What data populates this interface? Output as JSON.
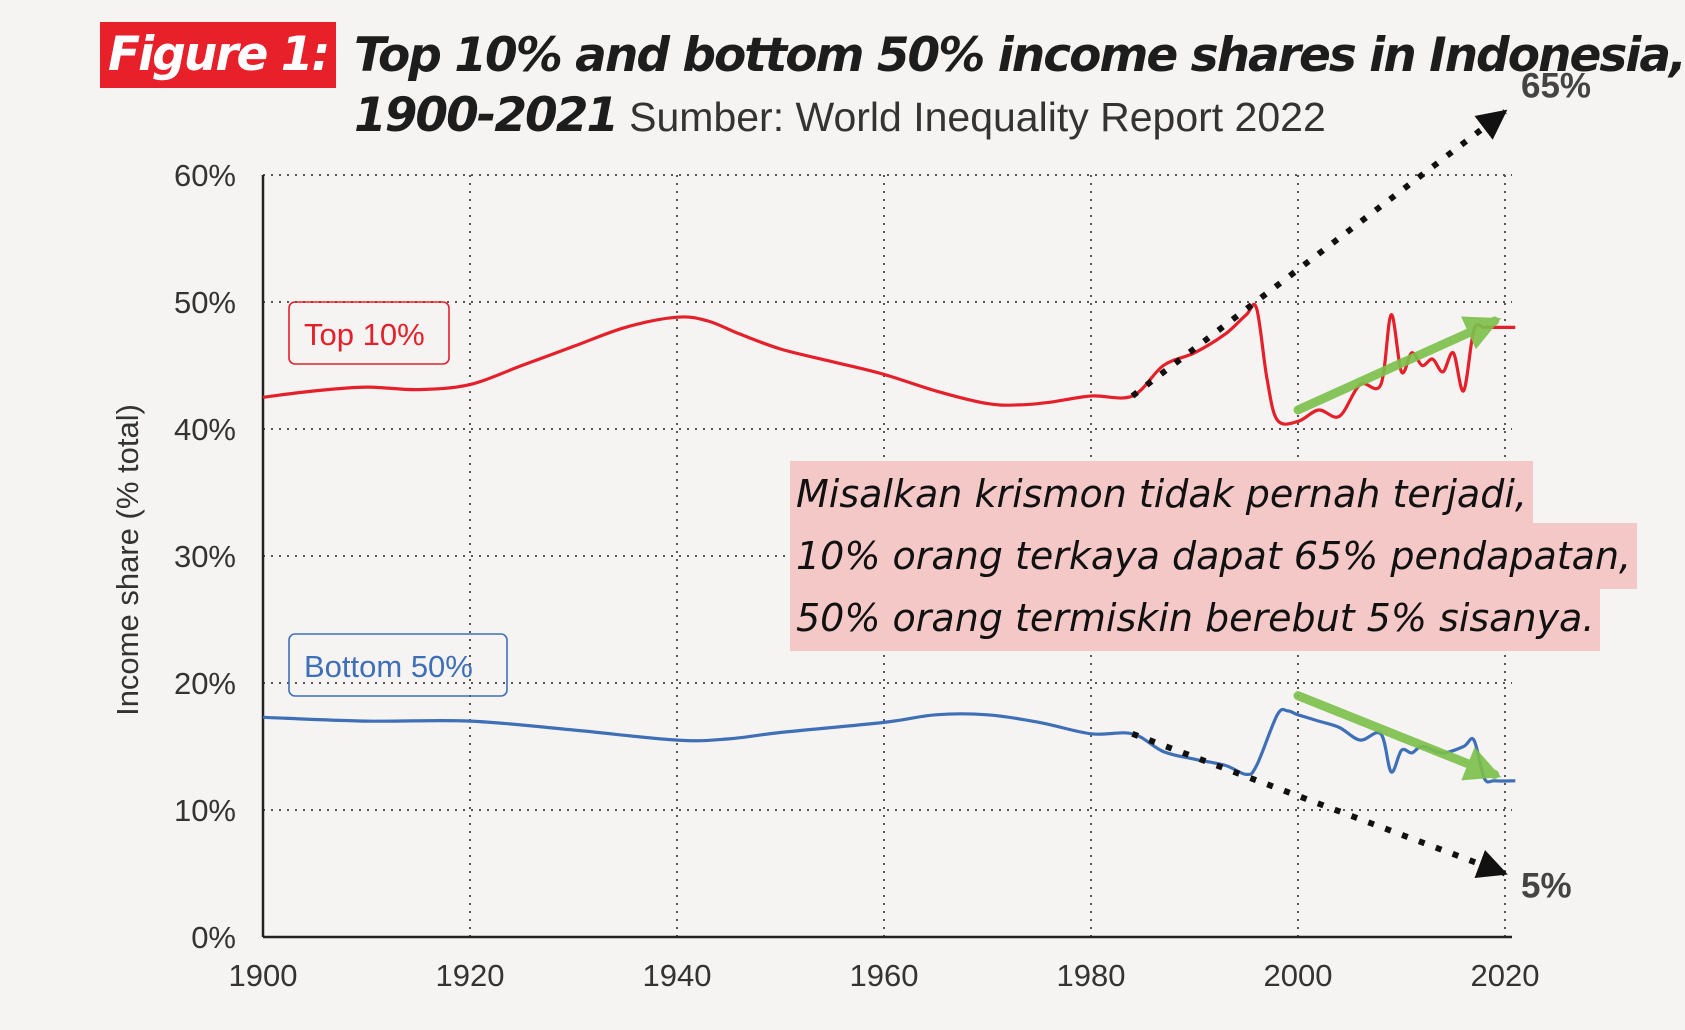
{
  "figure_label": "Figure 1:",
  "title_line1": "Top 10% and bottom 50% income shares in Indonesia,",
  "title_line2": "1900-2021",
  "source": "Sumber: World Inequality Report 2022",
  "annotation_lines": [
    "Misalkan krismon tidak pernah terjadi,",
    "10% orang terkaya dapat 65% pendapatan,",
    "50% orang termiskin berebut 5% sisanya."
  ],
  "colors": {
    "top": "#e5202a",
    "bottom": "#3f6fb6",
    "trend": "#7cc14a",
    "badge": "#e8202a"
  },
  "chart_data": {
    "type": "line",
    "title": "Top 10% and bottom 50% income shares in Indonesia, 1900-2021",
    "xlabel": "",
    "ylabel": "Income share (% total)",
    "xlim": [
      1900,
      2021
    ],
    "ylim": [
      0,
      60
    ],
    "xticks": [
      1900,
      1920,
      1940,
      1960,
      1980,
      2000,
      2020
    ],
    "xtick_labels": [
      "1900",
      "1920",
      "1940",
      "1960",
      "1980",
      "2000",
      "2020"
    ],
    "yticks": [
      0,
      10,
      20,
      30,
      40,
      50,
      60
    ],
    "ytick_labels": [
      "0%",
      "10%",
      "20%",
      "30%",
      "40%",
      "50%",
      "60%"
    ],
    "series": [
      {
        "name": "Top 10%",
        "x": [
          1900,
          1905,
          1910,
          1915,
          1920,
          1925,
          1930,
          1935,
          1940,
          1943,
          1946,
          1950,
          1955,
          1960,
          1965,
          1970,
          1973,
          1976,
          1980,
          1984,
          1987,
          1990,
          1993,
          1995,
          1996,
          1997,
          1998,
          2000,
          2002,
          2004,
          2006,
          2008,
          2009,
          2010,
          2011,
          2012,
          2013,
          2014,
          2015,
          2016,
          2017,
          2018,
          2019,
          2021
        ],
        "values": [
          42.5,
          43,
          43.3,
          43.1,
          43.5,
          45,
          46.5,
          48,
          48.8,
          48.5,
          47.5,
          46.3,
          45.3,
          44.3,
          43,
          42,
          41.9,
          42.1,
          42.6,
          42.6,
          45,
          46,
          47.5,
          49,
          49.5,
          44,
          40.7,
          40.6,
          41.5,
          41,
          43.5,
          43.5,
          49,
          44.5,
          46,
          45,
          45.5,
          44.5,
          46,
          43,
          47.8,
          48,
          48,
          48
        ]
      },
      {
        "name": "Bottom 50%",
        "x": [
          1900,
          1910,
          1920,
          1930,
          1940,
          1945,
          1950,
          1960,
          1965,
          1970,
          1975,
          1980,
          1984,
          1987,
          1990,
          1993,
          1995,
          1996,
          1998,
          1999,
          2000,
          2002,
          2004,
          2006,
          2008,
          2009,
          2010,
          2011,
          2012,
          2014,
          2016,
          2017,
          2018,
          2019,
          2021
        ],
        "values": [
          17.3,
          17,
          17,
          16.3,
          15.5,
          15.6,
          16.1,
          16.9,
          17.5,
          17.5,
          16.9,
          16,
          16,
          14.6,
          14,
          13.5,
          12.8,
          13.5,
          17.5,
          17.8,
          17.5,
          17,
          16.5,
          15.5,
          16,
          13,
          14.7,
          14.5,
          15,
          14.5,
          15,
          15.5,
          12.5,
          12.3,
          12.3
        ]
      }
    ],
    "legend": [
      {
        "label": "Top 10%",
        "placement": "left, above series"
      },
      {
        "label": "Bottom 50%",
        "placement": "left, above series"
      }
    ],
    "projections": [
      {
        "series": "Top 10%",
        "from": [
          1984,
          42.6
        ],
        "to": [
          2020,
          65
        ],
        "label": "65%"
      },
      {
        "series": "Bottom 50%",
        "from": [
          1984,
          16
        ],
        "to": [
          2020,
          5
        ],
        "label": "5%"
      }
    ],
    "trends": [
      {
        "series": "Top 10%",
        "from": [
          2000,
          41.5
        ],
        "to": [
          2019,
          48.5
        ]
      },
      {
        "series": "Bottom 50%",
        "from": [
          2000,
          19
        ],
        "to": [
          2019,
          12.8
        ]
      }
    ],
    "grid": true
  }
}
